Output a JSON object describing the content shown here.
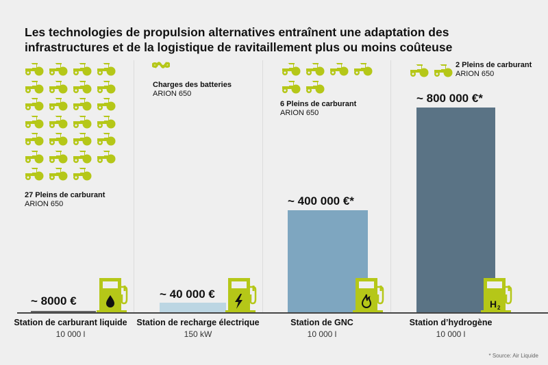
{
  "title_line1": "Les technologies de propulsion alternatives entraînent une adaptation des",
  "title_line2": "infrastructures et de la logistique de ravitaillement plus ou moins coûteuse",
  "colors": {
    "accent": "#b5c718",
    "bar1": "#666666",
    "bar2": "#bcd6e3",
    "bar3": "#7ea6c0",
    "bar4": "#5a7385"
  },
  "stations": [
    {
      "name": "Station de carburant liquide",
      "capacity": "10 000 l",
      "price": "~ 8000 €",
      "cost": 8000,
      "refuels_label": "27 Pleins de carburant",
      "vehicle": "ARION 650",
      "tractors": 27,
      "icon": "oil-drop-icon"
    },
    {
      "name": "Station de recharge électrique",
      "capacity": "150 kW",
      "price": "~ 40 000 €",
      "cost": 40000,
      "refuels_label": "Charges des batteries",
      "vehicle": "ARION 650",
      "tractors": 0,
      "icon": "lightning-icon"
    },
    {
      "name": "Station de GNC",
      "capacity": "10 000 l",
      "price": "~ 400 000 €*",
      "cost": 400000,
      "refuels_label": "6 Pleins de carburant",
      "vehicle": "ARION 650",
      "tractors": 6,
      "icon": "flame-icon"
    },
    {
      "name": "Station d’hydrogène",
      "capacity": "10 000 l",
      "price": "~ 800 000 €*",
      "cost": 800000,
      "refuels_label": "2 Pleins de carburant",
      "vehicle": "ARION 650",
      "tractors": 2,
      "icon": "h2-icon",
      "icon_text": "H2"
    }
  ],
  "source": "* Source: Air Liquide",
  "chart_data": {
    "type": "bar",
    "title": "Les technologies de propulsion alternatives entraînent une adaptation des infrastructures et de la logistique de ravitaillement plus ou moins coûteuse",
    "categories": [
      "Station de carburant liquide",
      "Station de recharge électrique",
      "Station de GNC",
      "Station d’hydrogène"
    ],
    "values": [
      8000,
      40000,
      400000,
      800000
    ],
    "ylabel": "€",
    "ylim": [
      0,
      800000
    ],
    "grid": false
  }
}
